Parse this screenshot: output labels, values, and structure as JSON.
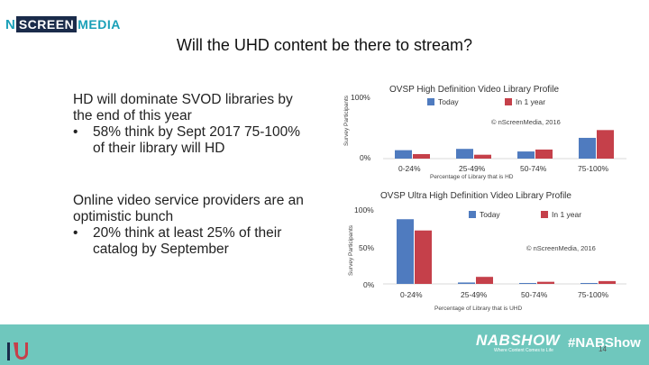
{
  "logo": {
    "n": "N",
    "screen": "SCREEN",
    "media": "MEDIA"
  },
  "slide_title": "Will the UHD content be there to stream?",
  "left_text": {
    "block1": {
      "heading": "HD will dominate SVOD libraries by the end of this year",
      "bullet": "58% think by Sept 2017 75-100% of their library will HD"
    },
    "block2": {
      "heading": "Online video service providers are an optimistic bunch",
      "bullet": "20% think at least 25% of their catalog by September"
    },
    "bullet_symbol": "•"
  },
  "colors": {
    "today": "#4f7bbf",
    "in1year": "#c5404a",
    "footer": "#6fc7bd"
  },
  "chart_data": [
    {
      "type": "bar",
      "title": "OVSP High Definition Video Library Profile",
      "categories": [
        "0-24%",
        "25-49%",
        "50-74%",
        "75-100%"
      ],
      "series": [
        {
          "name": "Today",
          "values": [
            13,
            15,
            11,
            32
          ]
        },
        {
          "name": "In 1 year",
          "values": [
            7,
            6,
            14,
            44
          ]
        }
      ],
      "ylim": [
        0,
        100
      ],
      "yticks": [
        "100%",
        "0%"
      ],
      "ylabel": "Survey Participants",
      "xlabel": "Percentage of Library that is HD",
      "annotation": "© nScreenMedia, 2016"
    },
    {
      "type": "bar",
      "title": "OVSP Ultra High Definition Video Library Profile",
      "categories": [
        "0-24%",
        "25-49%",
        "50-74%",
        "75-100%"
      ],
      "series": [
        {
          "name": "Today",
          "values": [
            92,
            2,
            1,
            0.5
          ]
        },
        {
          "name": "In 1 year",
          "values": [
            76,
            10,
            3,
            4
          ]
        }
      ],
      "ylim": [
        0,
        100
      ],
      "yticks": [
        "100%",
        "50%",
        "0%"
      ],
      "ylabel": "Survey Participants",
      "xlabel": "Percentage of Library that is UHD",
      "annotation": "© nScreenMedia, 2016"
    }
  ],
  "footer": {
    "brand": "NABSHOW",
    "tagline": "Where Content Comes to Life",
    "hashtag": "#NABShow",
    "page": "14"
  }
}
